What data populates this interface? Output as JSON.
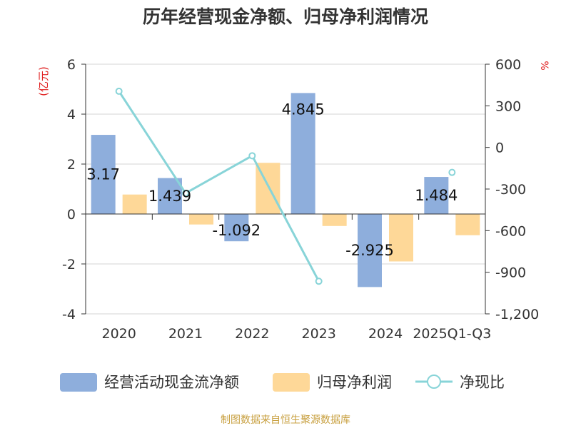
{
  "chart_data": {
    "type": "bar",
    "title": "历年经营现金净额、归母净利润情况",
    "categories": [
      "2020",
      "2021",
      "2022",
      "2023",
      "2024",
      "2025Q1-Q3"
    ],
    "y_left_label": "(亿元)",
    "y_right_label": "%",
    "ylim_left": [
      -4,
      6
    ],
    "ylim_right": [
      -1200,
      600
    ],
    "y_left_ticks": [
      -4,
      -2,
      0,
      2,
      4,
      6
    ],
    "y_right_ticks": [
      -1200,
      -900,
      -600,
      -300,
      0,
      300,
      600
    ],
    "y_right_tick_labels": [
      "-1,200",
      "-900",
      "-600",
      "-300",
      "0",
      "300",
      "600"
    ],
    "grid": true,
    "legend_position": "bottom",
    "series": [
      {
        "name": "经营活动现金流净额",
        "kind": "bar",
        "axis": "left",
        "color": "#8eaedc",
        "values": [
          3.17,
          1.439,
          -1.092,
          4.845,
          -2.925,
          1.484
        ],
        "labels": [
          "3.17",
          "1.439",
          "-1.092",
          "4.845",
          "-2.925",
          "1.484"
        ]
      },
      {
        "name": "归母净利润",
        "kind": "bar",
        "axis": "left",
        "color": "#fed898",
        "values": [
          0.78,
          -0.42,
          2.05,
          -0.48,
          -1.9,
          -0.85
        ]
      },
      {
        "name": "净现比",
        "kind": "line",
        "axis": "right",
        "color": "#88d4d8",
        "values": [
          405,
          -330,
          -60,
          -965,
          null,
          -180
        ]
      }
    ]
  },
  "source": "制图数据来自恒生聚源数据库"
}
